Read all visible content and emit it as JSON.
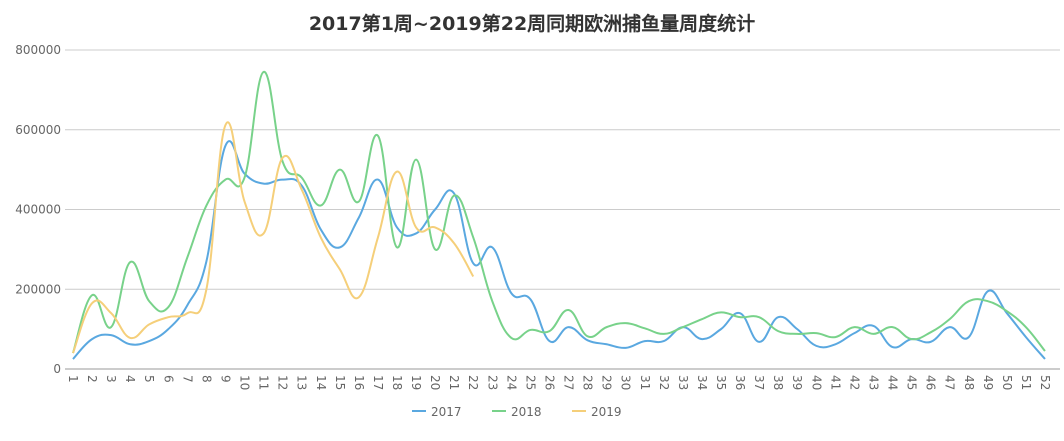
{
  "chart_data": {
    "type": "line",
    "title": "2017第1周~2019第22周同期欧洲捕鱼量周度统计",
    "categories": [
      "1",
      "2",
      "3",
      "4",
      "5",
      "6",
      "7",
      "8",
      "9",
      "10",
      "11",
      "12",
      "13",
      "14",
      "15",
      "16",
      "17",
      "18",
      "19",
      "20",
      "21",
      "22",
      "23",
      "24",
      "25",
      "26",
      "27",
      "28",
      "29",
      "30",
      "31",
      "32",
      "33",
      "34",
      "35",
      "36",
      "37",
      "38",
      "39",
      "40",
      "41",
      "42",
      "43",
      "44",
      "45",
      "46",
      "47",
      "48",
      "49",
      "50",
      "51",
      "52"
    ],
    "series": [
      {
        "name": "2017",
        "color": "#5aa8e0",
        "values": [
          25000,
          75000,
          85000,
          62000,
          70000,
          100000,
          160000,
          270000,
          560000,
          490000,
          465000,
          475000,
          460000,
          350000,
          305000,
          380000,
          475000,
          355000,
          340000,
          400000,
          440000,
          265000,
          305000,
          190000,
          175000,
          70000,
          105000,
          72000,
          62000,
          53000,
          70000,
          70000,
          105000,
          75000,
          100000,
          140000,
          68000,
          130000,
          100000,
          58000,
          62000,
          90000,
          108000,
          55000,
          75000,
          68000,
          105000,
          80000,
          195000,
          140000,
          80000,
          25000
        ]
      },
      {
        "name": "2018",
        "color": "#78d28a",
        "values": [
          40000,
          185000,
          105000,
          268000,
          170000,
          155000,
          280000,
          410000,
          475000,
          480000,
          745000,
          520000,
          480000,
          410000,
          500000,
          420000,
          585000,
          305000,
          525000,
          300000,
          435000,
          330000,
          170000,
          78000,
          98000,
          95000,
          148000,
          82000,
          105000,
          115000,
          102000,
          88000,
          105000,
          125000,
          142000,
          130000,
          130000,
          95000,
          88000,
          90000,
          80000,
          105000,
          88000,
          105000,
          75000,
          92000,
          125000,
          170000,
          170000,
          145000,
          105000,
          45000
        ]
      },
      {
        "name": "2019",
        "color": "#f5cf7a",
        "values": [
          40000,
          165000,
          140000,
          78000,
          112000,
          130000,
          140000,
          200000,
          612000,
          420000,
          340000,
          530000,
          450000,
          330000,
          250000,
          180000,
          330000,
          495000,
          355000,
          355000,
          315000,
          232000,
          null,
          null,
          null,
          null,
          null,
          null,
          null,
          null,
          null,
          null,
          null,
          null,
          null,
          null,
          null,
          null,
          null,
          null,
          null,
          null,
          null,
          null,
          null,
          null,
          null,
          null,
          null,
          null,
          null,
          null
        ]
      }
    ],
    "ylim": [
      0,
      800000
    ],
    "yticks": [
      0,
      200000,
      400000,
      600000,
      800000
    ],
    "grid": true
  }
}
